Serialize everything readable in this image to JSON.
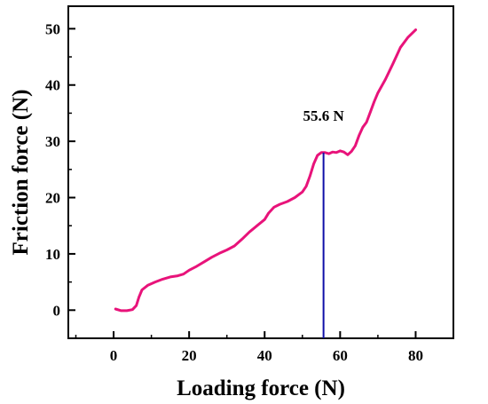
{
  "chart_data": {
    "type": "line",
    "title": "",
    "xlabel": "Loading force (N)",
    "ylabel": "Friction force (N)",
    "xlim": [
      -12,
      90
    ],
    "ylim": [
      -5,
      54
    ],
    "x_ticks": [
      0,
      20,
      40,
      60,
      80
    ],
    "y_ticks": [
      0,
      10,
      20,
      30,
      40,
      50
    ],
    "grid": false,
    "legend": "none",
    "series": [
      {
        "color": "#e8137a",
        "points": [
          [
            0.5,
            0.2
          ],
          [
            2,
            -0.1
          ],
          [
            3.5,
            -0.1
          ],
          [
            5,
            0.1
          ],
          [
            6,
            0.8
          ],
          [
            6.7,
            2.3
          ],
          [
            7.5,
            3.6
          ],
          [
            9,
            4.4
          ],
          [
            11,
            5.0
          ],
          [
            13,
            5.5
          ],
          [
            15,
            5.9
          ],
          [
            17,
            6.1
          ],
          [
            18.5,
            6.4
          ],
          [
            20,
            7.1
          ],
          [
            22,
            7.8
          ],
          [
            24,
            8.6
          ],
          [
            26,
            9.4
          ],
          [
            28,
            10.1
          ],
          [
            30,
            10.7
          ],
          [
            32,
            11.4
          ],
          [
            34,
            12.6
          ],
          [
            36,
            13.9
          ],
          [
            38,
            15.0
          ],
          [
            40,
            16.1
          ],
          [
            41,
            17.2
          ],
          [
            42.5,
            18.3
          ],
          [
            44,
            18.8
          ],
          [
            46,
            19.3
          ],
          [
            48,
            20.0
          ],
          [
            50,
            21.0
          ],
          [
            51,
            22.0
          ],
          [
            52,
            23.8
          ],
          [
            53,
            26.0
          ],
          [
            54,
            27.5
          ],
          [
            55,
            28.0
          ],
          [
            56,
            28.0
          ],
          [
            57,
            27.8
          ],
          [
            58,
            28.1
          ],
          [
            59,
            28.0
          ],
          [
            60,
            28.3
          ],
          [
            61,
            28.1
          ],
          [
            62,
            27.6
          ],
          [
            63,
            28.2
          ],
          [
            64,
            29.2
          ],
          [
            65,
            31.0
          ],
          [
            66,
            32.5
          ],
          [
            67,
            33.4
          ],
          [
            68,
            35.2
          ],
          [
            69,
            37.0
          ],
          [
            70,
            38.6
          ],
          [
            72,
            41.0
          ],
          [
            74,
            43.8
          ],
          [
            76,
            46.7
          ],
          [
            78,
            48.5
          ],
          [
            80,
            49.8
          ]
        ]
      }
    ],
    "annotations": [
      {
        "text": "55.6 N",
        "x": 55.6,
        "y": 28.0,
        "line_color": "#1010a8"
      }
    ]
  }
}
